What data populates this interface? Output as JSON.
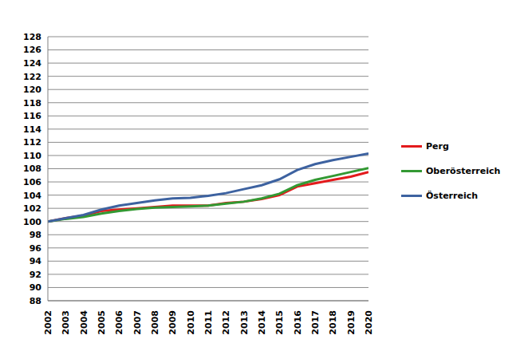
{
  "chart_data": {
    "type": "line",
    "x": [
      2002,
      2003,
      2004,
      2005,
      2006,
      2007,
      2008,
      2009,
      2010,
      2011,
      2012,
      2013,
      2014,
      2015,
      2016,
      2017,
      2018,
      2019,
      2020
    ],
    "series": [
      {
        "name": "Perg",
        "color": "#e31a1c",
        "values": [
          100,
          100.5,
          100.9,
          101.6,
          101.8,
          102.0,
          102.2,
          102.4,
          102.4,
          102.4,
          102.8,
          103.0,
          103.4,
          104.0,
          105.3,
          105.8,
          106.3,
          106.8,
          107.5
        ]
      },
      {
        "name": "Oberösterreich",
        "color": "#339933",
        "values": [
          100,
          100.4,
          100.7,
          101.2,
          101.6,
          101.9,
          102.1,
          102.2,
          102.3,
          102.4,
          102.7,
          103.0,
          103.5,
          104.2,
          105.5,
          106.3,
          106.9,
          107.5,
          108.1
        ]
      },
      {
        "name": "Österreich",
        "color": "#3d62a0",
        "values": [
          100,
          100.5,
          101.0,
          101.8,
          102.4,
          102.8,
          103.2,
          103.5,
          103.6,
          103.9,
          104.3,
          104.9,
          105.5,
          106.4,
          107.8,
          108.7,
          109.3,
          109.8,
          110.3
        ]
      }
    ],
    "xlim": [
      2002,
      2020
    ],
    "xticks": [
      2002,
      2003,
      2004,
      2005,
      2006,
      2007,
      2008,
      2009,
      2010,
      2011,
      2012,
      2013,
      2014,
      2015,
      2016,
      2017,
      2018,
      2019,
      2020
    ],
    "ylim": [
      88,
      128
    ],
    "yticks": [
      88,
      90,
      92,
      94,
      96,
      98,
      100,
      102,
      104,
      106,
      108,
      110,
      112,
      114,
      116,
      118,
      120,
      122,
      124,
      126,
      128
    ],
    "grid": true,
    "legend": "right"
  }
}
